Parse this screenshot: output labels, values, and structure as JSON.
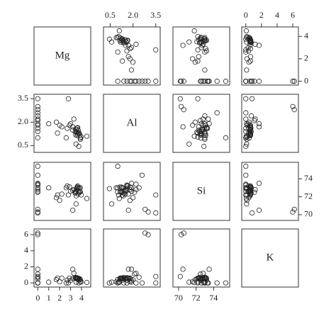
{
  "chart_data": {
    "type": "scatter-matrix",
    "point_color": "#222222",
    "variables": [
      {
        "name": "Mg",
        "lim": [
          -0.15,
          4.65
        ],
        "xticks": [
          0,
          1,
          2,
          3,
          4
        ],
        "yticks": [
          0,
          2,
          4
        ],
        "values": [
          4.49,
          3.6,
          3.55,
          3.69,
          3.62,
          3.61,
          3.6,
          3.85,
          3.7,
          3.78,
          3.9,
          3.46,
          3.52,
          3.77,
          3.89,
          3.43,
          3.98,
          3.2,
          3.47,
          3.65,
          3.0,
          2.9,
          2.7,
          2.2,
          2.0,
          1.7,
          1.0,
          3.75,
          2.6,
          0,
          0,
          0,
          0,
          0,
          0,
          0,
          0,
          0,
          0,
          0,
          0,
          3.3,
          3.5,
          3.2,
          1.8,
          2.8
        ]
      },
      {
        "name": "Al",
        "lim": [
          0.2,
          3.65
        ],
        "xticks": [
          0.5,
          {
            "value": 2.0,
            "label": "2.0"
          },
          3.5
        ],
        "yticks": [
          0.5,
          {
            "value": 2.0,
            "label": "2.0"
          },
          3.5
        ],
        "values": [
          1.1,
          1.36,
          1.54,
          1.29,
          1.24,
          1.62,
          1.14,
          1.17,
          1.48,
          1.28,
          0.98,
          1.56,
          1.36,
          1.31,
          0.9,
          1.4,
          1.05,
          1.5,
          1.19,
          1.65,
          1.9,
          1.8,
          1.6,
          1.7,
          1.8,
          2.0,
          1.9,
          0.45,
          1.0,
          2.2,
          2.8,
          3.0,
          1.6,
          1.8,
          2.1,
          1.4,
          2.4,
          3.5,
          1.0,
          1.9,
          2.6,
          2.2,
          0.6,
          1.7,
          1.3,
          3.5
        ]
      },
      {
        "name": "Si",
        "lim": [
          69.6,
          75.6
        ],
        "xticks": [
          70,
          72,
          74
        ],
        "yticks": [
          70,
          72,
          74
        ],
        "values": [
          71.8,
          72.99,
          72.83,
          72.61,
          73.08,
          72.97,
          73.09,
          72.6,
          72.3,
          72.98,
          72.54,
          72.63,
          72.1,
          72.5,
          73.0,
          72.4,
          72.2,
          72.7,
          72.5,
          73.2,
          72.6,
          73.1,
          73.2,
          72.3,
          71.6,
          71.9,
          73.0,
          72.9,
          73.0,
          73.4,
          70.6,
          70.3,
          73.3,
          72.8,
          72.5,
          72.6,
          73.0,
          70.2,
          75.4,
          73.5,
          74.4,
          72.8,
          71.2,
          70.5,
          72.2,
          72.2
        ]
      },
      {
        "name": "K",
        "lim": [
          -0.25,
          6.45
        ],
        "xticks": [
          0,
          2,
          4,
          6
        ],
        "yticks": [
          0,
          2,
          4,
          6
        ],
        "values": [
          0.06,
          0.57,
          0.6,
          0.57,
          0.55,
          0.64,
          0.58,
          0.5,
          0.56,
          0.55,
          0.41,
          0.58,
          0.52,
          0.35,
          0.13,
          0.69,
          0.12,
          0.55,
          0.61,
          0.6,
          0.3,
          0.6,
          0.35,
          0.6,
          0.15,
          0.4,
          0.1,
          0.0,
          0.0,
          0.0,
          6.2,
          6.0,
          0.0,
          0.5,
          1.1,
          0.0,
          0.7,
          0.8,
          0.0,
          1.7,
          0.0,
          1.2,
          0.1,
          1.7,
          0.6,
          0.0
        ]
      }
    ]
  }
}
